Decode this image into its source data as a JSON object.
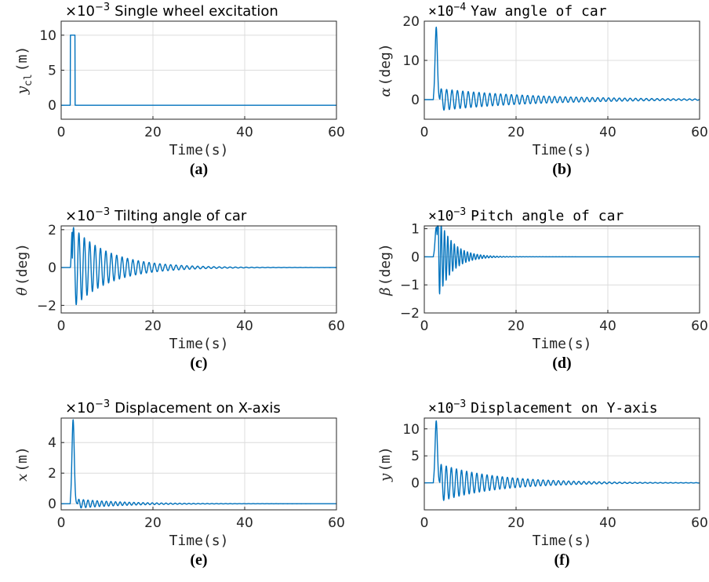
{
  "accent_color": "#0072BD",
  "chart_data": [
    {
      "id": "a",
      "type": "line",
      "caption": "(a)",
      "title": "Single wheel excitation",
      "exponent": "−3",
      "title_font": "serif",
      "xlabel": "Time(s)",
      "ylabel": "y",
      "ylabel_sub": "cl",
      "ylabel_unit": "(m)",
      "xlim": [
        0,
        60
      ],
      "ylim": [
        -2,
        12
      ],
      "xticks": [
        0,
        20,
        40,
        60
      ],
      "yticks": [
        0,
        5,
        10
      ],
      "grid": true,
      "series": [
        {
          "model": "step",
          "t0": 2.0,
          "t1": 3.0,
          "amp": 10
        }
      ]
    },
    {
      "id": "b",
      "type": "line",
      "caption": "(b)",
      "title": "Yaw angle of car",
      "exponent": "−4",
      "title_font": "mono",
      "xlabel": "Time(s)",
      "ylabel": "α",
      "ylabel_sub": "",
      "ylabel_unit": "(deg)",
      "xlim": [
        0,
        60
      ],
      "ylim": [
        -5,
        20
      ],
      "xticks": [
        0,
        20,
        40,
        60
      ],
      "yticks": [
        0,
        10,
        20
      ],
      "grid": true,
      "series": [
        {
          "model": "transient",
          "t0": 2.0,
          "pulse": 18.5,
          "ring": 2.8,
          "freq": 0.85,
          "tau": 20,
          "start": 3.4
        }
      ]
    },
    {
      "id": "c",
      "type": "line",
      "caption": "(c)",
      "title": "Tilting angle of car",
      "exponent": "−3",
      "title_font": "serif",
      "xlabel": "Time(s)",
      "ylabel": "θ",
      "ylabel_sub": "",
      "ylabel_unit": "(deg)",
      "xlim": [
        0,
        60
      ],
      "ylim": [
        -2.4,
        2.2
      ],
      "xticks": [
        0,
        20,
        40,
        60
      ],
      "yticks": [
        -2,
        0,
        2
      ],
      "grid": true,
      "series": [
        {
          "model": "transient",
          "t0": 2.0,
          "pulse": 0,
          "ring": 2.2,
          "freq": 0.85,
          "tau": 8,
          "start": 2.4
        }
      ]
    },
    {
      "id": "d",
      "type": "line",
      "caption": "(d)",
      "title": "Pitch angle of car",
      "exponent": "−3",
      "title_font": "mono",
      "xlabel": "Time(s)",
      "ylabel": "β",
      "ylabel_sub": "",
      "ylabel_unit": "(deg)",
      "xlim": [
        0,
        60
      ],
      "ylim": [
        -2,
        1.1
      ],
      "xticks": [
        0,
        20,
        40,
        60
      ],
      "yticks": [
        -2,
        -1,
        0,
        1
      ],
      "grid": true,
      "series": [
        {
          "model": "transient",
          "t0": 2.0,
          "pulse": 1.05,
          "ring": 1.6,
          "freq": 1.4,
          "tau": 3.0,
          "start": 2.8
        }
      ]
    },
    {
      "id": "e",
      "type": "line",
      "caption": "(e)",
      "title": "Displacement on X-axis",
      "exponent": "−3",
      "title_font": "serif",
      "xlabel": "Time(s)",
      "ylabel": "x",
      "ylabel_sub": "",
      "ylabel_unit": "(m)",
      "xlim": [
        0,
        60
      ],
      "ylim": [
        -0.4,
        5.6
      ],
      "xticks": [
        0,
        20,
        40,
        60
      ],
      "yticks": [
        0,
        2,
        4
      ],
      "grid": true,
      "series": [
        {
          "model": "transient",
          "t0": 2.0,
          "pulse": 5.5,
          "ring": 0.3,
          "freq": 1.0,
          "tau": 10,
          "start": 3.6
        }
      ]
    },
    {
      "id": "f",
      "type": "line",
      "caption": "(f)",
      "title": "Displacement on Y-axis",
      "exponent": "−3",
      "title_font": "mono",
      "xlabel": "Time(s)",
      "ylabel": "y",
      "ylabel_sub": "",
      "ylabel_unit": "(m)",
      "xlim": [
        0,
        60
      ],
      "ylim": [
        -5,
        12
      ],
      "xticks": [
        0,
        20,
        40,
        60
      ],
      "yticks": [
        0,
        5,
        10
      ],
      "grid": true,
      "series": [
        {
          "model": "transient",
          "t0": 2.0,
          "pulse": 11.5,
          "ring": 3.5,
          "freq": 0.9,
          "tau": 12,
          "start": 3.4
        }
      ]
    }
  ]
}
